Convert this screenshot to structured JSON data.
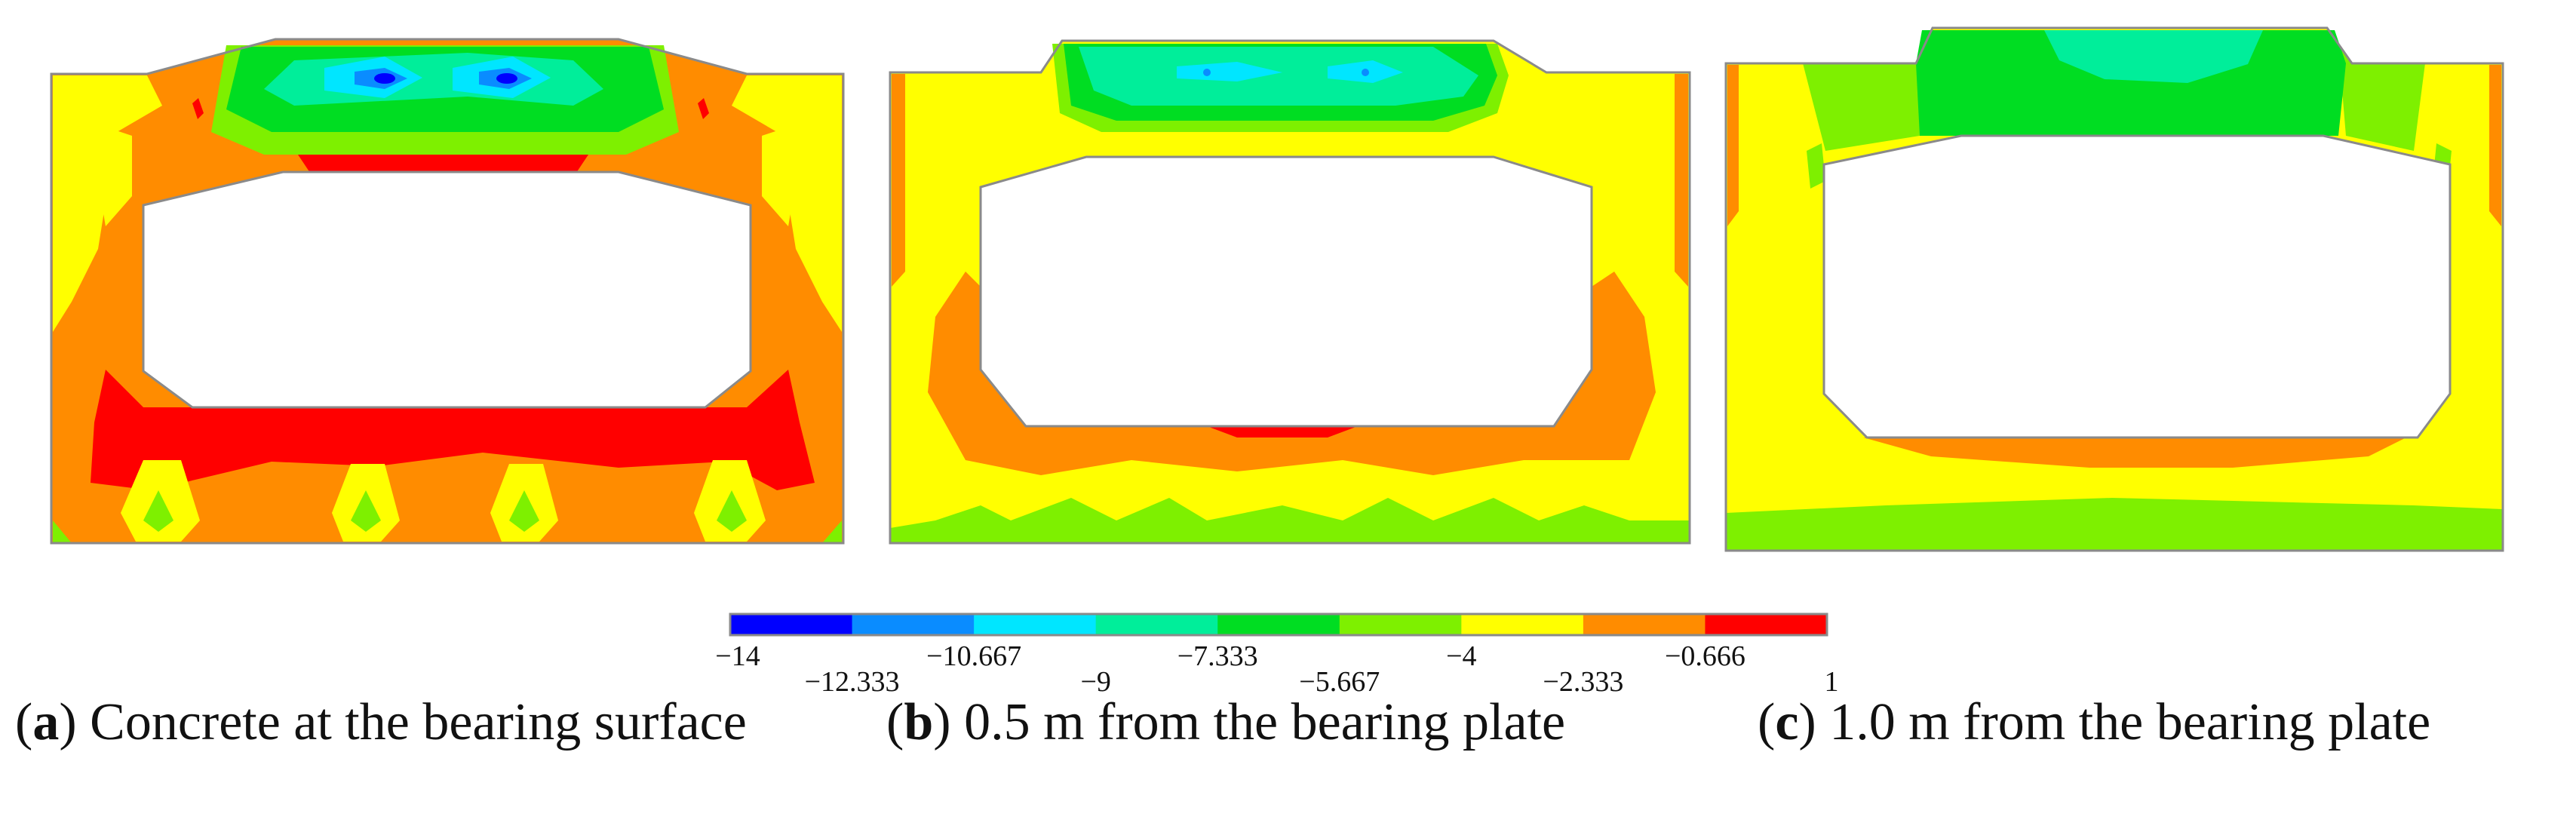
{
  "panels": [
    {
      "id": "a",
      "letter": "a",
      "caption_text": "Concrete at the bearing surface"
    },
    {
      "id": "b",
      "letter": "b",
      "caption_text": "0.5 m from the bearing plate"
    },
    {
      "id": "c",
      "letter": "c",
      "caption_text": "1.0 m from the bearing plate"
    }
  ],
  "legend": {
    "colors": [
      "#0000ff",
      "#0a8cff",
      "#00e6ff",
      "#00ee9a",
      "#00dd22",
      "#7ef000",
      "#ffff00",
      "#ff8c00",
      "#ff0000"
    ],
    "ticks": [
      "−14",
      "−12.333",
      "−10.667",
      "−9",
      "−7.333",
      "−5.667",
      "−4",
      "−2.333",
      "−0.666",
      "1"
    ]
  }
}
